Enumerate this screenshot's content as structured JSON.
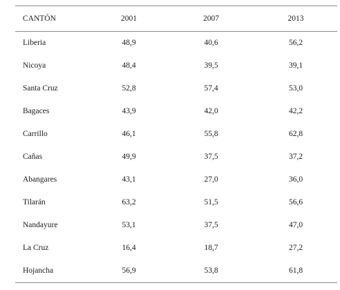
{
  "table": {
    "headers": [
      "CANTÓN",
      "2001",
      "2007",
      "2013"
    ],
    "rows": [
      [
        "Liberia",
        "48,9",
        "40,6",
        "56,2"
      ],
      [
        "Nicoya",
        "48,4",
        "39,5",
        "39,1"
      ],
      [
        "Santa Cruz",
        "52,8",
        "57,4",
        "53,0"
      ],
      [
        "Bagaces",
        "43,9",
        "42,0",
        "42,2"
      ],
      [
        "Carrillo",
        "46,1",
        "55,8",
        "62,8"
      ],
      [
        "Cañas",
        "49,9",
        "37,5",
        "37,2"
      ],
      [
        "Abangares",
        "43,1",
        "27,0",
        "36,0"
      ],
      [
        "Tilarán",
        "63,2",
        "51,5",
        "56,6"
      ],
      [
        "Nandayure",
        "53,1",
        "37,5",
        "47,0"
      ],
      [
        "La Cruz",
        "16,4",
        "18,7",
        "27,2"
      ],
      [
        "Hojancha",
        "56,9",
        "53,8",
        "61,8"
      ]
    ]
  }
}
